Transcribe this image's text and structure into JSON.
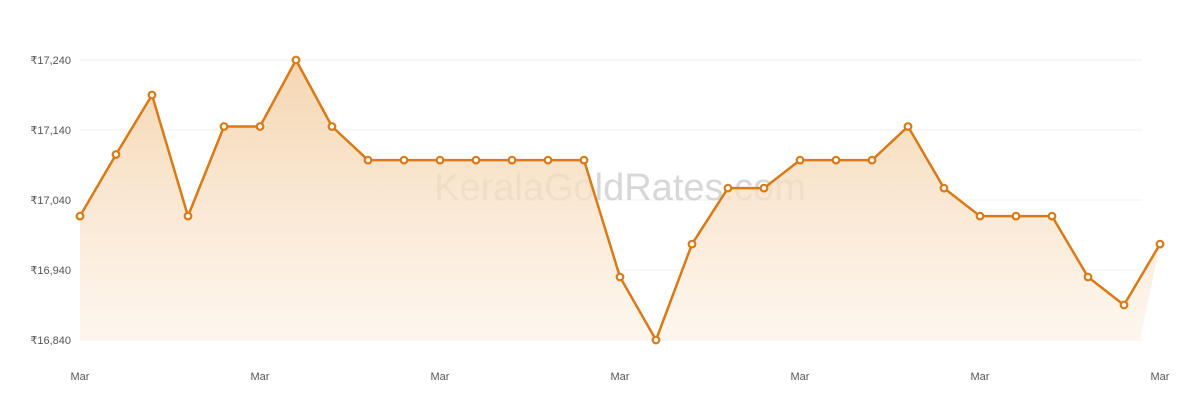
{
  "watermark": "KeralaGoldRates.com",
  "colors": {
    "line": "#d97a16",
    "area_top": "#f3cfa4",
    "area_bottom": "#fdf3e8",
    "grid": "#f2f2f2",
    "tick_text": "#555555",
    "watermark": "#c9c9c9"
  },
  "chart_data": {
    "type": "area",
    "title": "",
    "xlabel": "",
    "ylabel": "",
    "ylim": [
      16840,
      17240
    ],
    "yticks": [
      "₹17,240",
      "₹17,140",
      "₹17,040",
      "₹16,940",
      "₹16,840"
    ],
    "ytick_values": [
      17240,
      17140,
      17040,
      16940,
      16840
    ],
    "xticks": [
      "Mar",
      "Mar",
      "Mar",
      "Mar",
      "Mar",
      "Mar",
      "Mar"
    ],
    "grid": true,
    "legend": "none",
    "series": [
      {
        "values": [
          17017,
          17105,
          17190,
          17017,
          17145,
          17145,
          17240,
          17145,
          17097,
          17097,
          17097,
          17097,
          17097,
          17097,
          17097,
          16930,
          16840,
          16977,
          17057,
          17057,
          17097,
          17097,
          17097,
          17145,
          17057,
          17017,
          17017,
          17017,
          16930,
          16890,
          16977
        ]
      }
    ]
  }
}
